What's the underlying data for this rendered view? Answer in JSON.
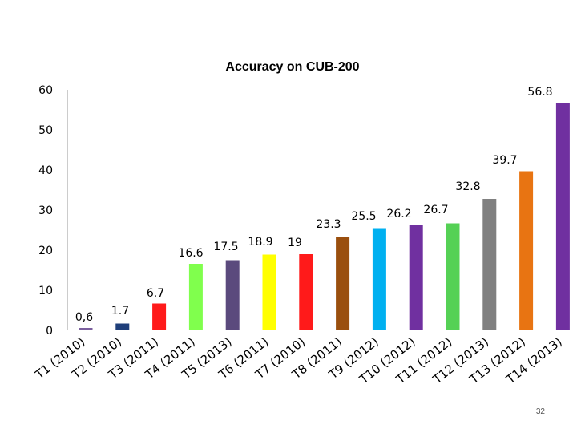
{
  "page_number": "32",
  "chart_data": {
    "type": "bar",
    "title": "Accuracy on CUB-200",
    "xlabel": "",
    "ylabel": "",
    "ylim": [
      0,
      60
    ],
    "yticks": [
      0,
      10,
      20,
      30,
      40,
      50,
      60
    ],
    "grid": false,
    "legend": "none",
    "categories": [
      "T1 (2010)",
      "T2 (2010)",
      "T3 (2011)",
      "T4 (2011)",
      "T5 (2013)",
      "T6 (2011)",
      "T7 (2010)",
      "T8 (2011)",
      "T9 (2012)",
      "T10 (2012)",
      "T11 (2012)",
      "T12 (2013)",
      "T13 (2012)",
      "T14 (2013)"
    ],
    "values": [
      0.6,
      1.7,
      6.7,
      16.6,
      17.5,
      18.9,
      19,
      23.3,
      25.5,
      26.2,
      26.7,
      32.8,
      39.7,
      56.8
    ],
    "value_labels": [
      "0,6",
      "1.7",
      "6.7",
      "16.6",
      "17.5",
      "18.9",
      "19",
      "23.3",
      "25.5",
      "26.2",
      "26.7",
      "32.8",
      "39.7",
      "56.8"
    ],
    "colors": [
      "#7b5f9e",
      "#1f3f7a",
      "#ff1a1a",
      "#80ff4d",
      "#5b4a7d",
      "#ffff00",
      "#ff1a1a",
      "#9a4f0e",
      "#00b0f0",
      "#7030a0",
      "#55d155",
      "#808080",
      "#e87412",
      "#7030a0"
    ]
  }
}
